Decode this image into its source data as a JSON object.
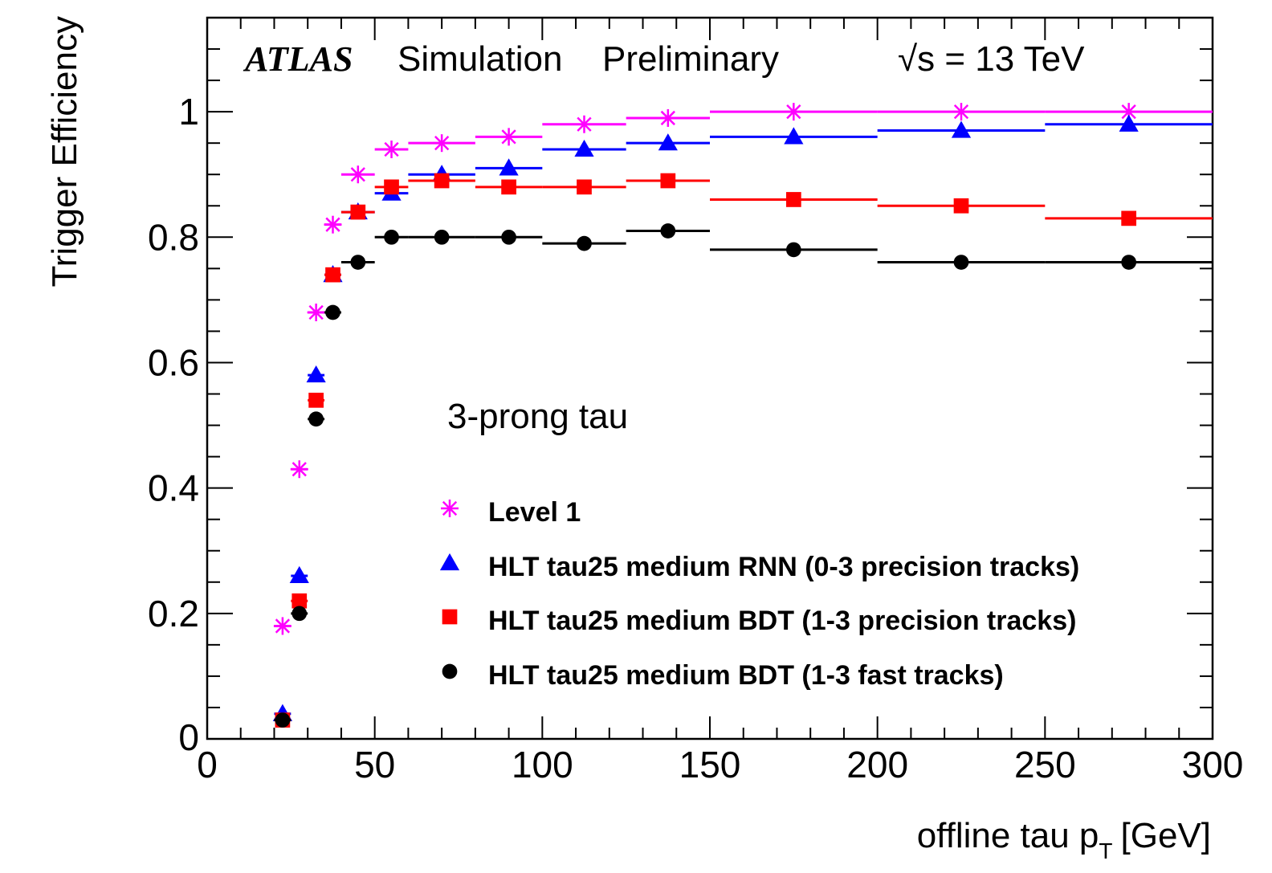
{
  "chart_data": {
    "type": "scatter",
    "experiment": "ATLAS",
    "label_simulation": "Simulation",
    "label_preliminary": "Preliminary",
    "energy_label": "√s = 13 TeV",
    "annotation": "3-prong tau",
    "xlabel": "offline tau p_T [GeV]",
    "xlabel_main": "offline tau p",
    "xlabel_sub": "T",
    "xlabel_unit": "[GeV]",
    "ylabel": "Trigger Efficiency",
    "xlim": [
      0,
      300
    ],
    "ylim": [
      0,
      1.15
    ],
    "xticks": [
      "0",
      "50",
      "100",
      "150",
      "200",
      "250",
      "300"
    ],
    "yticks": [
      "0",
      "0.2",
      "0.4",
      "0.6",
      "0.8",
      "1"
    ],
    "legend_position": "bottom-center",
    "bins": [
      [
        20,
        25
      ],
      [
        25,
        30
      ],
      [
        30,
        35
      ],
      [
        35,
        40
      ],
      [
        40,
        50
      ],
      [
        50,
        60
      ],
      [
        60,
        80
      ],
      [
        80,
        100
      ],
      [
        100,
        125
      ],
      [
        125,
        150
      ],
      [
        150,
        200
      ],
      [
        200,
        250
      ],
      [
        250,
        300
      ]
    ],
    "x": [
      22.5,
      27.5,
      32.5,
      37.5,
      45,
      55,
      70,
      90,
      112.5,
      137.5,
      175,
      225,
      275
    ],
    "series": [
      {
        "name": "Level 1",
        "marker": "asterisk",
        "color": "#ff00ff",
        "values": [
          0.18,
          0.43,
          0.68,
          0.82,
          0.9,
          0.94,
          0.95,
          0.96,
          0.98,
          0.99,
          1.0,
          1.0,
          1.0
        ]
      },
      {
        "name": "HLT tau25 medium RNN (0-3 precision tracks)",
        "marker": "triangle",
        "color": "#0000ff",
        "values": [
          0.04,
          0.26,
          0.58,
          0.74,
          0.84,
          0.87,
          0.9,
          0.91,
          0.94,
          0.95,
          0.96,
          0.97,
          0.98
        ]
      },
      {
        "name": "HLT tau25 medium BDT (1-3 precision tracks)",
        "marker": "square",
        "color": "#ff0000",
        "values": [
          0.03,
          0.22,
          0.54,
          0.74,
          0.84,
          0.88,
          0.89,
          0.88,
          0.88,
          0.89,
          0.86,
          0.85,
          0.83
        ]
      },
      {
        "name": "HLT tau25 medium BDT (1-3 fast tracks)",
        "marker": "circle",
        "color": "#000000",
        "values": [
          0.03,
          0.2,
          0.51,
          0.68,
          0.76,
          0.8,
          0.8,
          0.8,
          0.79,
          0.81,
          0.78,
          0.76,
          0.76
        ]
      }
    ]
  }
}
